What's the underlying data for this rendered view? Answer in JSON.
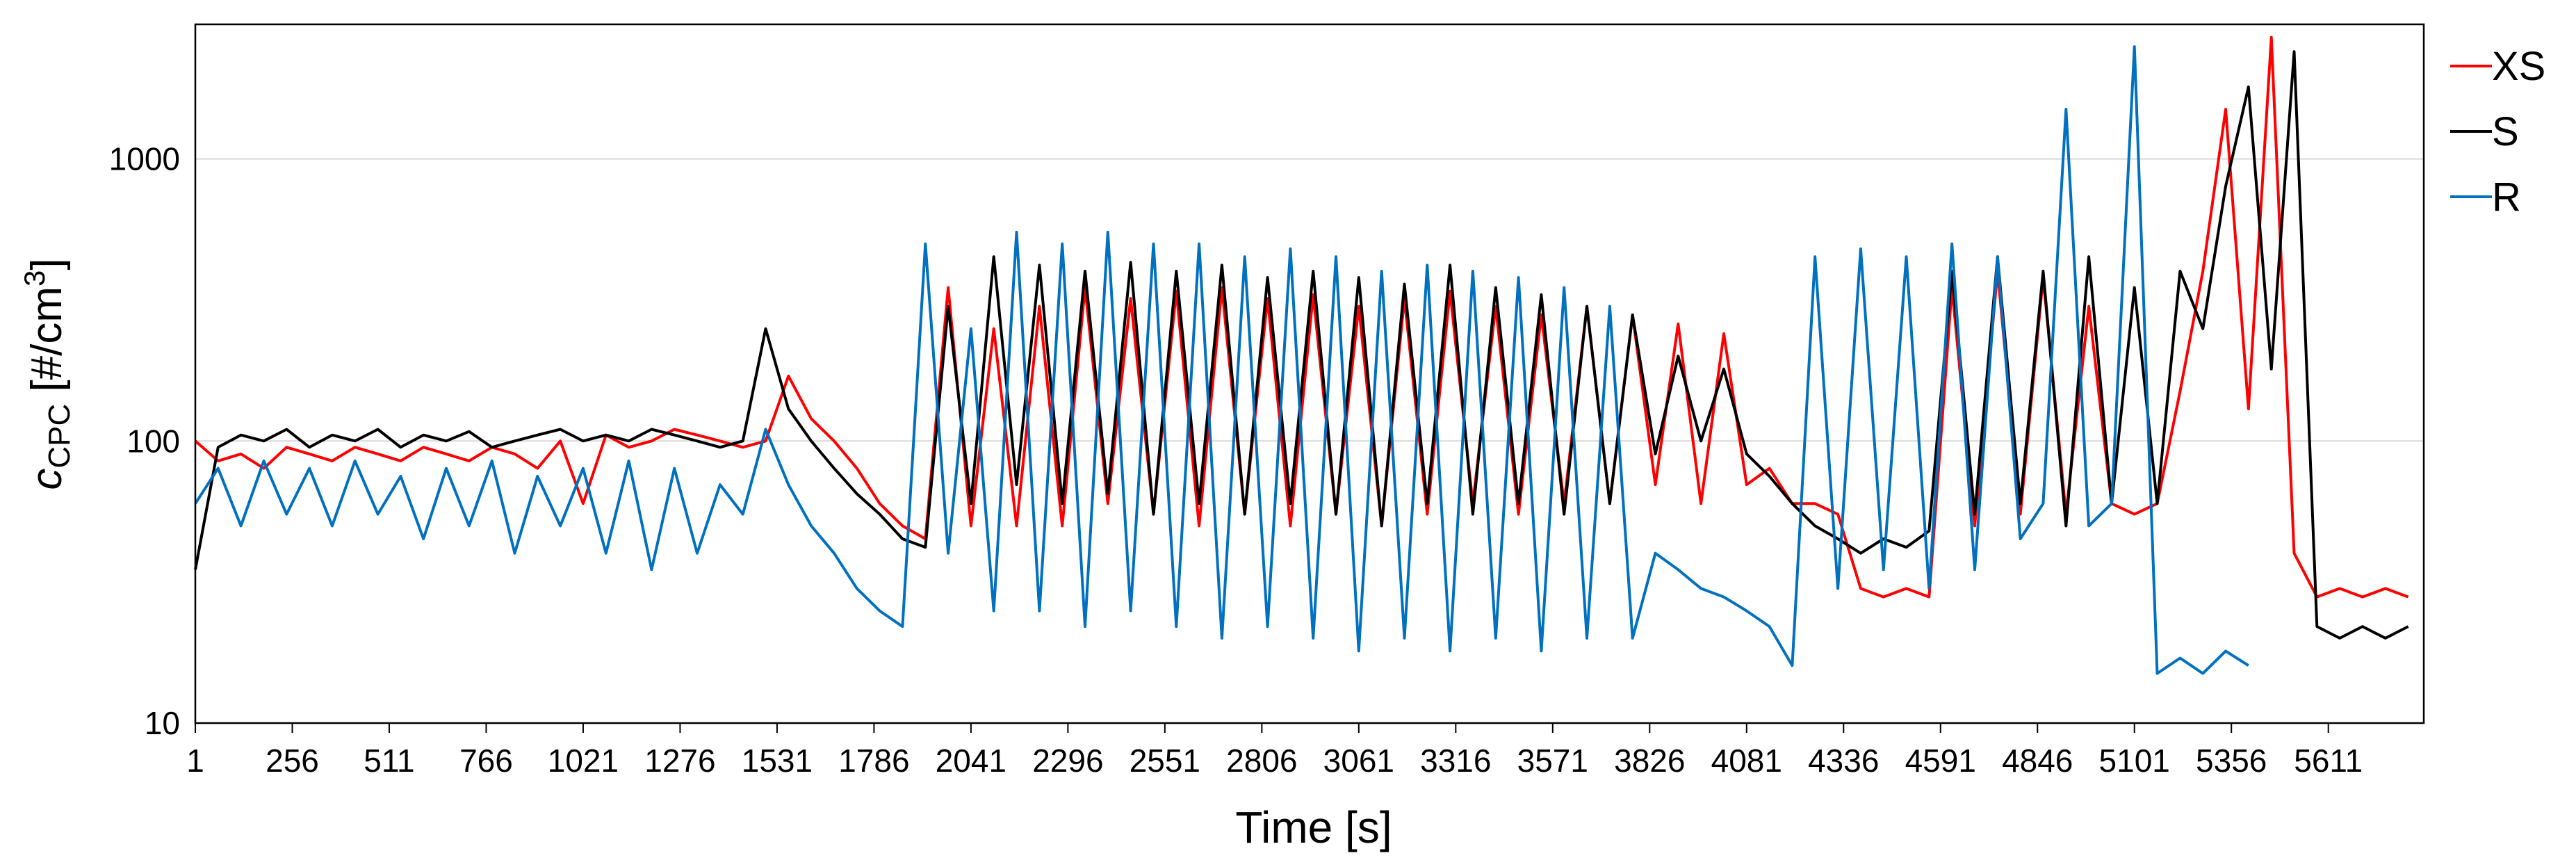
{
  "chart_data": {
    "type": "line",
    "x_label": "Time [s]",
    "y_label_parts": [
      "c",
      "CPC",
      " [#/cm",
      "3",
      "]"
    ],
    "y_scale": "log",
    "grid": true,
    "legend": "right",
    "xlim": [
      1,
      5862
    ],
    "ylim": [
      10,
      3000
    ],
    "xticks": [
      1,
      256,
      511,
      766,
      1021,
      1276,
      1531,
      1786,
      2041,
      2296,
      2551,
      2806,
      3061,
      3316,
      3571,
      3826,
      4081,
      4336,
      4591,
      4846,
      5101,
      5356,
      5611
    ],
    "yticks": [
      10,
      100,
      1000
    ],
    "x": [
      1,
      61,
      121,
      181,
      241,
      301,
      361,
      421,
      481,
      541,
      601,
      661,
      721,
      781,
      841,
      901,
      961,
      1021,
      1081,
      1141,
      1201,
      1261,
      1321,
      1381,
      1441,
      1501,
      1561,
      1621,
      1681,
      1741,
      1801,
      1861,
      1921,
      1981,
      2041,
      2101,
      2161,
      2221,
      2281,
      2341,
      2401,
      2461,
      2521,
      2581,
      2641,
      2701,
      2761,
      2821,
      2881,
      2941,
      3001,
      3061,
      3121,
      3181,
      3241,
      3301,
      3361,
      3421,
      3481,
      3541,
      3601,
      3661,
      3721,
      3781,
      3841,
      3901,
      3961,
      4021,
      4081,
      4141,
      4201,
      4261,
      4321,
      4381,
      4441,
      4501,
      4561,
      4621,
      4681,
      4741,
      4801,
      4861,
      4921,
      4981,
      5041,
      5101,
      5161,
      5221,
      5281,
      5341,
      5401,
      5461,
      5521,
      5581,
      5641,
      5701,
      5761,
      5821
    ],
    "series": [
      {
        "name": "XS",
        "color": "#ff0000",
        "values": [
          100,
          85,
          90,
          80,
          95,
          90,
          85,
          95,
          90,
          85,
          95,
          90,
          85,
          95,
          90,
          80,
          100,
          60,
          105,
          95,
          100,
          110,
          105,
          100,
          95,
          100,
          170,
          120,
          100,
          80,
          60,
          50,
          45,
          350,
          50,
          250,
          50,
          300,
          50,
          350,
          60,
          320,
          55,
          340,
          50,
          350,
          55,
          320,
          50,
          330,
          55,
          300,
          50,
          320,
          55,
          340,
          60,
          300,
          55,
          280,
          60,
          300,
          60,
          280,
          70,
          260,
          60,
          240,
          70,
          80,
          60,
          60,
          55,
          30,
          28,
          30,
          28,
          350,
          50,
          400,
          55,
          380,
          55,
          300,
          60,
          55,
          60,
          150,
          400,
          1500,
          130,
          2700,
          40,
          28,
          30,
          28,
          30,
          28
        ]
      },
      {
        "name": "S",
        "color": "#000000",
        "values": [
          35,
          95,
          105,
          100,
          110,
          95,
          105,
          100,
          110,
          95,
          105,
          100,
          108,
          95,
          100,
          105,
          110,
          100,
          105,
          100,
          110,
          105,
          100,
          95,
          100,
          250,
          130,
          100,
          80,
          65,
          55,
          45,
          42,
          300,
          60,
          450,
          70,
          420,
          60,
          400,
          65,
          430,
          55,
          400,
          60,
          420,
          55,
          380,
          60,
          400,
          55,
          380,
          50,
          360,
          60,
          420,
          55,
          350,
          60,
          330,
          55,
          300,
          60,
          280,
          90,
          200,
          100,
          180,
          90,
          75,
          60,
          50,
          45,
          40,
          45,
          42,
          48,
          400,
          55,
          450,
          60,
          400,
          50,
          450,
          60,
          350,
          60,
          400,
          250,
          800,
          1800,
          180,
          2400,
          22,
          20,
          22,
          20,
          22
        ]
      },
      {
        "name": "R",
        "color": "#0070c0",
        "values": [
          60,
          80,
          50,
          85,
          55,
          80,
          50,
          85,
          55,
          75,
          45,
          80,
          50,
          85,
          40,
          75,
          50,
          80,
          40,
          85,
          35,
          80,
          40,
          70,
          55,
          110,
          70,
          50,
          40,
          30,
          25,
          22,
          500,
          40,
          250,
          25,
          550,
          25,
          500,
          22,
          550,
          25,
          500,
          22,
          500,
          20,
          450,
          22,
          480,
          20,
          450,
          18,
          400,
          20,
          420,
          18,
          400,
          20,
          380,
          18,
          350,
          20,
          300,
          20,
          40,
          35,
          30,
          28,
          25,
          22,
          16,
          450,
          30,
          480,
          35,
          450,
          30,
          500,
          35,
          450,
          45,
          60,
          1500,
          50,
          60,
          2500,
          15,
          17,
          15,
          18,
          16,
          null,
          null,
          null,
          null,
          null,
          null,
          null
        ]
      }
    ]
  }
}
